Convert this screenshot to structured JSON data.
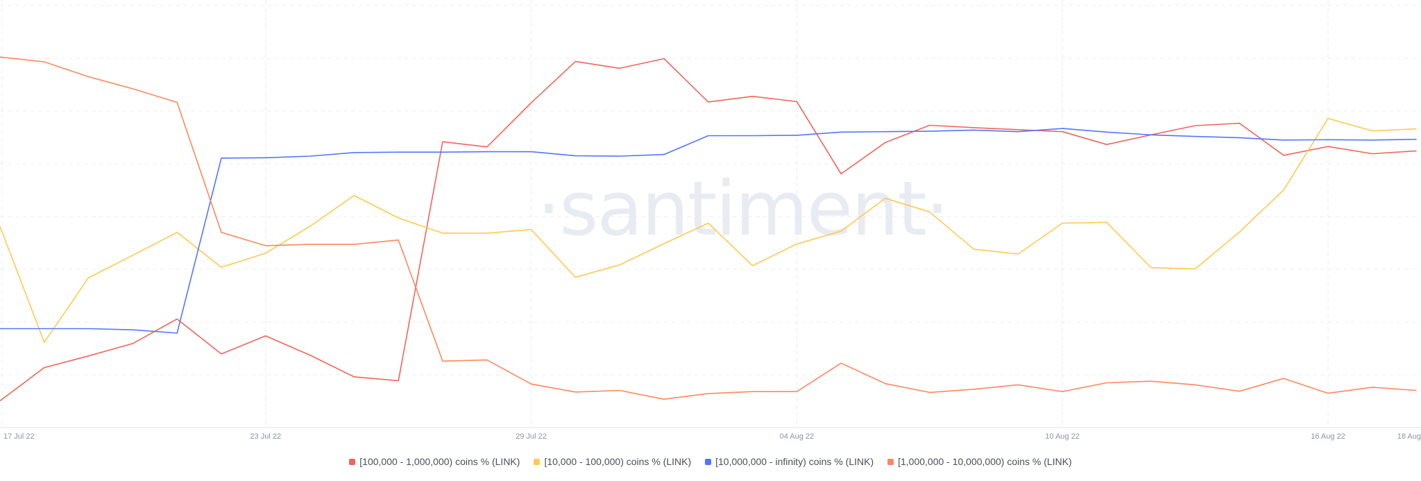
{
  "watermark": "·santiment·",
  "chart_data": {
    "type": "line",
    "x": [
      "17 Jul 22",
      "18 Jul 22",
      "19 Jul 22",
      "20 Jul 22",
      "21 Jul 22",
      "22 Jul 22",
      "23 Jul 22",
      "24 Jul 22",
      "25 Jul 22",
      "26 Jul 22",
      "27 Jul 22",
      "28 Jul 22",
      "29 Jul 22",
      "30 Jul 22",
      "31 Jul 22",
      "01 Aug 22",
      "02 Aug 22",
      "03 Aug 22",
      "04 Aug 22",
      "05 Aug 22",
      "06 Aug 22",
      "07 Aug 22",
      "08 Aug 22",
      "09 Aug 22",
      "10 Aug 22",
      "11 Aug 22",
      "12 Aug 22",
      "13 Aug 22",
      "14 Aug 22",
      "15 Aug 22",
      "16 Aug 22",
      "17 Aug 22",
      "18 Aug 22"
    ],
    "x_tick_labels": [
      "17 Jul 22",
      "23 Jul 22",
      "29 Jul 22",
      "04 Aug 22",
      "10 Aug 22",
      "16 Aug 22",
      "18 Aug"
    ],
    "x_tick_indices": [
      0,
      6,
      12,
      18,
      24,
      30,
      31.6
    ],
    "ylim": [
      0,
      100
    ],
    "grid": true,
    "legend_position": "bottom-center",
    "series": [
      {
        "name": "[100,000  - 1,000,000) coins % (LINK)",
        "color": "#f2645a",
        "values": [
          7,
          15.3,
          18.2,
          21.3,
          27.4,
          18.7,
          23.2,
          18.4,
          13,
          12,
          71.6,
          70.3,
          81.3,
          91.6,
          89.9,
          92.3,
          81.5,
          82.9,
          81.6,
          63.6,
          71.4,
          75.7,
          75.1,
          74.6,
          74.1,
          70.9,
          73.3,
          75.6,
          76.2,
          68.2,
          70.4,
          68.6,
          69.3
        ]
      },
      {
        "name": "[10,000 - 100,000) coins % (LINK)",
        "color": "#ffc94d",
        "values": [
          50.5,
          21.6,
          37.7,
          43.3,
          49,
          40.3,
          43.8,
          50.5,
          58.2,
          52.6,
          48.8,
          48.8,
          49.7,
          37.8,
          40.9,
          46.2,
          51.3,
          40.7,
          46.1,
          49.3,
          57.5,
          54.1,
          44.8,
          43.6,
          51.3,
          51.5,
          40.2,
          39.9,
          49.1,
          59.6,
          77.4,
          74.3,
          74.8
        ]
      },
      {
        "name": "[10,000,000 - infinity) coins % (LINK)",
        "color": "#5275ff",
        "values": [
          25,
          25,
          25,
          24.7,
          23.9,
          67.5,
          67.6,
          68,
          68.9,
          69,
          69,
          69.1,
          69.1,
          68.1,
          68,
          68.4,
          73.1,
          73.1,
          73.2,
          74,
          74.1,
          74.2,
          74.5,
          74.1,
          74.9,
          74,
          73.3,
          72.9,
          72.6,
          72,
          72.1,
          72,
          72.2
        ]
      },
      {
        "name": "[1,000,000 - 10,000,000) coins % (LINK)",
        "color": "#ff875f",
        "values": [
          92.7,
          91.5,
          87.8,
          84.8,
          81.4,
          49,
          45.7,
          46,
          46,
          47.1,
          16.9,
          17.2,
          11.2,
          9.2,
          9.6,
          7.4,
          8.8,
          9.3,
          9.3,
          16.4,
          11.3,
          9.1,
          9.9,
          11,
          9.3,
          11.5,
          11.9,
          11,
          9.4,
          12.6,
          8.9,
          10.4,
          9.6
        ]
      }
    ]
  }
}
